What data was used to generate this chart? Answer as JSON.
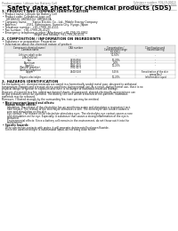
{
  "bg_color": "#ffffff",
  "header_top_left": "Product name: Lithium Ion Battery Cell",
  "header_top_right": "Substance number: SDS-US-00019\nEstablished / Revision: Dec.7,2016",
  "main_title": "Safety data sheet for chemical products (SDS)",
  "section1_title": "1. PRODUCT AND COMPANY IDENTIFICATION",
  "section1_lines": [
    " • Product name: Lithium Ion Battery Cell",
    " • Product code: Cylindrical-type cell",
    "     UR18650J, UR18650U, UR18650A",
    " • Company name:      Sanyo Electric Co., Ltd., Mobile Energy Company",
    " • Address:           2031, Kaminaizen, Sumoto City, Hyogo, Japan",
    " • Telephone number:  +81-(799)-20-4111",
    " • Fax number:  +81-(799)-26-4123",
    " • Emergency telephone number (Afterhours) +81-799-20-3962",
    "                                    (Night and holiday) +81-799-26-4131"
  ],
  "section2_title": "2. COMPOSITION / INFORMATION ON INGREDIENTS",
  "section2_intro": " • Substance or preparation: Preparation",
  "section2_sub": " • Information about the chemical nature of product:",
  "table_cols": [
    5,
    62,
    108,
    152,
    197
  ],
  "table_header_row1": [
    "Component chemical name /",
    "CAS number",
    "Concentration /",
    "Classification and"
  ],
  "table_header_row2": [
    "Common name",
    "",
    "Concentration range",
    "hazard labeling"
  ],
  "table_header_row3": [
    "",
    "",
    "[30-50%]",
    ""
  ],
  "table_rows": [
    [
      "Lithium cobalt oxide\n(LiMnCoO2(x))",
      "-",
      "30-50%",
      "-"
    ],
    [
      "Iron",
      "7439-89-6",
      "10-20%",
      "-"
    ],
    [
      "Aluminum",
      "7429-90-5",
      "2-6%",
      "-"
    ],
    [
      "Graphite\n(Natural graphite)\n(Artificial graphite)",
      "7782-42-5\n7782-42-5",
      "10-25%",
      "-"
    ],
    [
      "Copper",
      "7440-50-8",
      "5-15%",
      "Sensitization of the skin\ngroup No.2"
    ],
    [
      "Organic electrolyte",
      "-",
      "10-20%",
      "Inflammable liquid"
    ]
  ],
  "section3_title": "3. HAZARDS IDENTIFICATION",
  "section3_paras": [
    "For the battery cell, chemical materials are stored in a hermetically sealed metal case, designed to withstand",
    "temperature changes and pressure-stress conditions during normal use. As a result, during normal use, there is no",
    "physical danger of ignition or explosion and there is no danger of hazardous materials leakage.",
    "",
    "However, if exposed to a fire, added mechanical shocks, decomposed, shorted electrically-wrong misuse can",
    "be gas releases cannot be operated. The battery cell case will be breached at fire-patterns, hazardous",
    "materials may be released.",
    "",
    "Moreover, if heated strongly by the surrounding fire, toxic gas may be emitted."
  ],
  "section3_bullet1": " • Most important hazard and effects:",
  "section3_human": "Human health effects:",
  "section3_human_lines": [
    "Inhalation: The release of the electrolyte has an anesthesia action and stimulates a respiratory tract.",
    "Skin contact: The release of the electrolyte stimulates a skin. The electrolyte skin contact causes a",
    "sore and stimulation on the skin.",
    "Eye contact: The release of the electrolyte stimulates eyes. The electrolyte eye contact causes a sore",
    "and stimulation on the eye. Especially, a substance that causes a strong inflammation of the eye is",
    "contained.",
    "Environmental effects: Since a battery cell remains in the environment, do not throw out it into the",
    "environment."
  ],
  "section3_bullet2": " • Specific hazards:",
  "section3_specific_lines": [
    "If the electrolyte contacts with water, it will generate detrimental hydrogen fluoride.",
    "Since the used electrolyte is inflammable liquid, do not bring close to fire."
  ],
  "line_color": "#aaaaaa",
  "text_color": "#111111",
  "header_color": "#777777",
  "table_header_bg": "#e8e8e8"
}
